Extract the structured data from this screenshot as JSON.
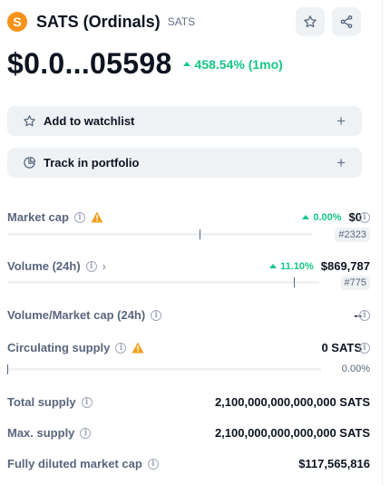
{
  "coin": {
    "logo_glyph": "S",
    "logo_color": "#f7931a",
    "name": "SATS (Ordinals)",
    "symbol": "SATS",
    "price": "$0.0...05598",
    "change": "458.54% (1mo)",
    "change_color": "#16c784"
  },
  "header_buttons": [
    {
      "icon": "star-icon"
    },
    {
      "icon": "share-icon"
    }
  ],
  "actions": {
    "watchlist_label": "Add to watchlist",
    "portfolio_label": "Track in portfolio",
    "plus": "+"
  },
  "stats": {
    "market_cap": {
      "label": "Market cap",
      "change": "0.00%",
      "value": "$0",
      "rank": "#2323",
      "bar_fraction": 0.63
    },
    "volume": {
      "label": "Volume (24h)",
      "change": "11.10%",
      "value": "$869,787",
      "rank": "#775",
      "bar_fraction": 0.92
    },
    "vol_mcap": {
      "label": "Volume/Market cap (24h)",
      "value": "--"
    },
    "circulating": {
      "label": "Circulating supply",
      "value": "0 SATS",
      "percent": "0.00%",
      "bar_fraction": 0.0
    },
    "total_supply": {
      "label": "Total supply",
      "value": "2,100,000,000,000,000 SATS"
    },
    "max_supply": {
      "label": "Max. supply",
      "value": "2,100,000,000,000,000 SATS"
    },
    "fdmc": {
      "label": "Fully diluted market cap",
      "value": "$117,565,816"
    }
  },
  "colors": {
    "positive": "#16c784",
    "warning": "#f0a020",
    "button_bg": "#eff2f5"
  }
}
